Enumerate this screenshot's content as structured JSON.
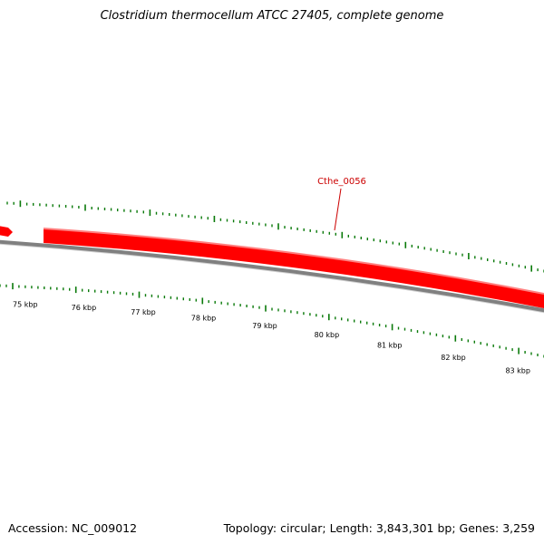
{
  "title": "Clostridium thermocellum ATCC 27405, complete genome",
  "footer": {
    "accession": "Accession: NC_009012",
    "summary": "Topology: circular; Length: 3,843,301 bp; Genes: 3,259"
  },
  "gene_label": "Cthe_0056",
  "ticks": [
    "75 kbp",
    "76 kbp",
    "77 kbp",
    "78 kbp",
    "79 kbp",
    "80 kbp",
    "81 kbp",
    "82 kbp",
    "83 kbp"
  ],
  "colors": {
    "gene": "#ff0000",
    "gene_highlight": "#ff8080",
    "backbone": "#808080",
    "ticks": "#0a7a0a",
    "label": "#cc0000"
  }
}
